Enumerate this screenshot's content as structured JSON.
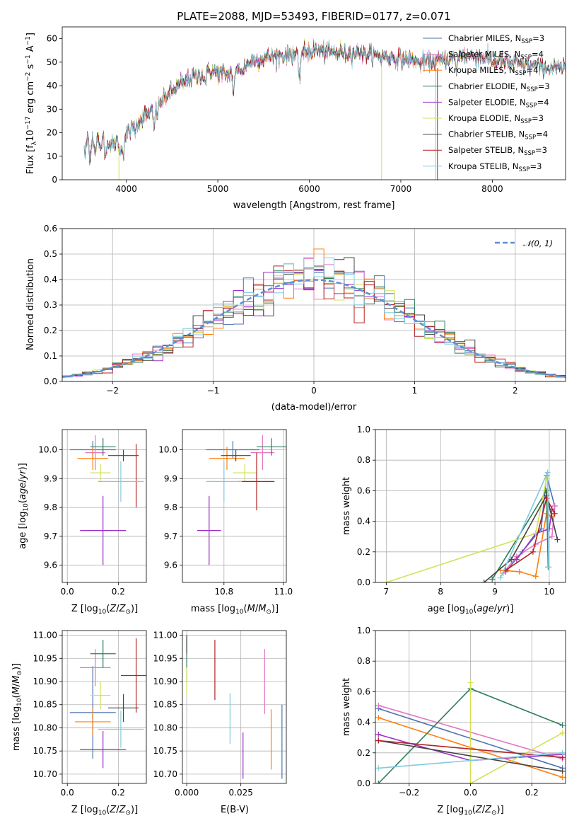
{
  "colors": {
    "chabrier_miles": "#4c72b0",
    "salpeter_miles": "#e377c2",
    "kroupa_miles": "#ff7f0e",
    "chabrier_elodie": "#2e7d5b",
    "salpeter_elodie": "#9b30c8",
    "kroupa_elodie": "#d4e157",
    "chabrier_stelib": "#444444",
    "salpeter_stelib": "#b22222",
    "kroupa_stelib": "#80cbe0",
    "gauss": "#5b8fd6"
  },
  "chart_data": [
    {
      "id": "spectrum",
      "type": "line",
      "title": "PLATE=2088, MJD=53493, FIBERID=0177, z=0.071",
      "xlabel": "wavelength [Angstrom, rest frame]",
      "ylabel": "Flux [f$_\\lambda$10$^{-17}$ erg cm$^{-2}$ s$^{-1}$ A$^{-1}$]",
      "xlim": [
        3300,
        8800
      ],
      "ylim": [
        0,
        65
      ],
      "xticks": [
        "4000",
        "5000",
        "6000",
        "7000",
        "8000"
      ],
      "yticks": [
        "0",
        "10",
        "20",
        "30",
        "40",
        "50",
        "60"
      ],
      "grid": false,
      "legend_position": "top-right",
      "legend": [
        {
          "text": "Chabrier MILES, N",
          "sub": "SSP",
          "tail": "=3"
        },
        {
          "text": "Salpeter MILES, N",
          "sub": "SSP",
          "tail": "=4"
        },
        {
          "text": "Kroupa MILES, N",
          "sub": "SSP",
          "tail": "=4"
        },
        {
          "text": "Chabrier ELODIE, N",
          "sub": "SSP",
          "tail": "=3"
        },
        {
          "text": "Salpeter ELODIE, N",
          "sub": "SSP",
          "tail": "=4"
        },
        {
          "text": "Kroupa ELODIE, N",
          "sub": "SSP",
          "tail": "=3"
        },
        {
          "text": "Chabrier STELIB, N",
          "sub": "SSP",
          "tail": "=4"
        },
        {
          "text": "Salpeter STELIB, N",
          "sub": "SSP",
          "tail": "=3"
        },
        {
          "text": "Kroupa STELIB, N",
          "sub": "SSP",
          "tail": "=3"
        }
      ],
      "continuum": {
        "x": [
          3540,
          3700,
          3850,
          3950,
          4100,
          4300,
          4500,
          4700,
          4900,
          5100,
          5300,
          5500,
          5700,
          5900,
          6100,
          6300,
          6500,
          6700,
          6900,
          7100,
          7300,
          7500,
          7700,
          7900,
          8100,
          8300,
          8500,
          8800
        ],
        "y": [
          14,
          15,
          15,
          17,
          24,
          30,
          38,
          43,
          46,
          45,
          49,
          52,
          53,
          54,
          55,
          54,
          54,
          53,
          52,
          51,
          50,
          51,
          53,
          52,
          50,
          49,
          48,
          47
        ]
      }
    },
    {
      "id": "residuals",
      "type": "line",
      "xlabel": "(data-model)/error",
      "ylabel": "Normed distribution",
      "xlim": [
        -2.5,
        2.5
      ],
      "ylim": [
        0,
        0.6
      ],
      "xticks": [
        "−2",
        "−1",
        "0",
        "1",
        "2"
      ],
      "yticks": [
        "0.0",
        "0.1",
        "0.2",
        "0.3",
        "0.4",
        "0.5",
        "0.6"
      ],
      "grid": true,
      "legend_position": "top-right",
      "legend": [
        {
          "label": "$\\mathcal{N}(0,1)$",
          "style": "dashed"
        }
      ],
      "bin_width": 0.1,
      "series": "step histograms of the nine model fits around the N(0,1) curve"
    },
    {
      "id": "age_vs_Z",
      "type": "scatter",
      "xlabel": "Z [log$_{10}$(Z/Z$_\\odot$)]",
      "ylabel": "age  [log$_{10}$(age/yr)]",
      "xlim": [
        -0.02,
        0.31
      ],
      "ylim": [
        9.54,
        10.07
      ],
      "xticks": [
        "0.0",
        "0.2"
      ],
      "yticks": [
        "9.6",
        "9.7",
        "9.8",
        "9.9",
        "10.0"
      ],
      "grid": true,
      "points": [
        {
          "x": 0.1,
          "y": 10.0,
          "xerr": 0.09,
          "yerr": 0.03
        },
        {
          "x": 0.11,
          "y": 9.99,
          "xerr": 0.04,
          "yerr": 0.06
        },
        {
          "x": 0.1,
          "y": 9.97,
          "xerr": 0.06,
          "yerr": 0.04
        },
        {
          "x": 0.14,
          "y": 10.01,
          "xerr": 0.05,
          "yerr": 0.03
        },
        {
          "x": 0.14,
          "y": 9.72,
          "xerr": 0.09,
          "yerr": 0.12
        },
        {
          "x": 0.13,
          "y": 9.92,
          "xerr": 0.04,
          "yerr": 0.03
        },
        {
          "x": 0.22,
          "y": 9.98,
          "xerr": 0.06,
          "yerr": 0.02
        },
        {
          "x": 0.27,
          "y": 9.91,
          "xerr": 0.0,
          "yerr": 0.11
        },
        {
          "x": 0.21,
          "y": 9.89,
          "xerr": 0.09,
          "yerr": 0.07
        }
      ]
    },
    {
      "id": "age_vs_mass",
      "type": "scatter",
      "xlabel": "mass [log$_{10}$(M/M$_\\odot$)]",
      "ylabel": "",
      "xlim": [
        10.66,
        11.01
      ],
      "ylim": [
        9.54,
        10.07
      ],
      "xticks": [
        "10.8",
        "11.0"
      ],
      "yticks": [
        "9.6",
        "9.7",
        "9.8",
        "9.9",
        "10.0"
      ],
      "grid": true,
      "points": [
        {
          "x": 10.83,
          "y": 10.0,
          "xerr": 0.09,
          "yerr": 0.03
        },
        {
          "x": 10.93,
          "y": 9.99,
          "xerr": 0.04,
          "yerr": 0.06
        },
        {
          "x": 10.81,
          "y": 9.97,
          "xerr": 0.06,
          "yerr": 0.04
        },
        {
          "x": 10.96,
          "y": 10.01,
          "xerr": 0.05,
          "yerr": 0.03
        },
        {
          "x": 10.75,
          "y": 9.72,
          "xerr": 0.04,
          "yerr": 0.12
        },
        {
          "x": 10.87,
          "y": 9.92,
          "xerr": 0.04,
          "yerr": 0.03
        },
        {
          "x": 10.84,
          "y": 9.98,
          "xerr": 0.05,
          "yerr": 0.02
        },
        {
          "x": 10.91,
          "y": 9.89,
          "xerr": 0.06,
          "yerr": 0.1
        },
        {
          "x": 10.8,
          "y": 9.89,
          "xerr": 0.06,
          "yerr": 0.07
        }
      ]
    },
    {
      "id": "weight_vs_age",
      "type": "line",
      "xlabel": "age  [log$_{10}$(age/yr)]",
      "ylabel": "mass weight",
      "xlim": [
        6.8,
        10.3
      ],
      "ylim": [
        0,
        1.0
      ],
      "xticks": [
        "7",
        "8",
        "9",
        "10"
      ],
      "yticks": [
        "0.0",
        "0.2",
        "0.4",
        "0.6",
        "0.8",
        "1.0"
      ],
      "grid": true,
      "series": [
        {
          "x": [
            9.2,
            9.5,
            9.85,
            9.95,
            10.1
          ],
          "y": [
            0.07,
            0.2,
            0.35,
            0.7,
            0.5
          ]
        },
        {
          "x": [
            9.15,
            9.4,
            9.75,
            10.05,
            10.1
          ],
          "y": [
            0.06,
            0.17,
            0.25,
            0.3,
            0.5
          ]
        },
        {
          "x": [
            9.1,
            9.45,
            9.75,
            9.95,
            10.05
          ],
          "y": [
            0.08,
            0.07,
            0.04,
            0.45,
            0.43
          ]
        },
        {
          "x": [
            8.95,
            9.95,
            9.98
          ],
          "y": [
            0.02,
            0.6,
            0.1
          ]
        },
        {
          "x": [
            9.4,
            9.75,
            10.0,
            10.05
          ],
          "y": [
            0.15,
            0.32,
            0.35,
            0.48
          ]
        },
        {
          "x": [
            7.0,
            9.75,
            9.95
          ],
          "y": [
            0.0,
            0.32,
            0.68
          ]
        },
        {
          "x": [
            8.8,
            9.3,
            9.95,
            10.15
          ],
          "y": [
            0.0,
            0.15,
            0.57,
            0.28
          ]
        },
        {
          "x": [
            9.2,
            9.7,
            9.95,
            10.1
          ],
          "y": [
            0.08,
            0.2,
            0.55,
            0.45
          ]
        },
        {
          "x": [
            9.1,
            9.97,
            9.99
          ],
          "y": [
            0.03,
            0.72,
            0.1
          ]
        }
      ]
    },
    {
      "id": "mass_vs_Z",
      "type": "scatter",
      "xlabel": "Z [log$_{10}$(Z/Z$_\\odot$)]",
      "ylabel": "mass [log$_{10}$(M/M$_\\odot$)]",
      "xlim": [
        -0.02,
        0.31
      ],
      "ylim": [
        10.68,
        11.01
      ],
      "xticks": [
        "0.0",
        "0.2"
      ],
      "yticks": [
        "10.70",
        "10.75",
        "10.80",
        "10.85",
        "10.90",
        "10.95",
        "11.00"
      ],
      "grid": true,
      "points": [
        {
          "x": 0.1,
          "y": 10.833,
          "xerr": 0.09,
          "yerr": 0.1
        },
        {
          "x": 0.11,
          "y": 10.93,
          "xerr": 0.06,
          "yerr": 0.04
        },
        {
          "x": 0.1,
          "y": 10.813,
          "xerr": 0.07,
          "yerr": 0.03
        },
        {
          "x": 0.14,
          "y": 10.96,
          "xerr": 0.05,
          "yerr": 0.03
        },
        {
          "x": 0.14,
          "y": 10.753,
          "xerr": 0.09,
          "yerr": 0.04
        },
        {
          "x": 0.13,
          "y": 10.87,
          "xerr": 0.04,
          "yerr": 0.03
        },
        {
          "x": 0.22,
          "y": 10.843,
          "xerr": 0.06,
          "yerr": 0.03
        },
        {
          "x": 0.27,
          "y": 10.913,
          "xerr": 0.06,
          "yerr": 0.08
        },
        {
          "x": 0.21,
          "y": 10.797,
          "xerr": 0.09,
          "yerr": 0.04
        }
      ]
    },
    {
      "id": "mass_vs_EBV",
      "type": "scatter",
      "xlabel": "E(B-V)",
      "ylabel": "",
      "xlim": [
        -0.002,
        0.046
      ],
      "ylim": [
        10.68,
        11.01
      ],
      "xticks": [
        "0.000",
        "0.025"
      ],
      "yticks": [
        "10.70",
        "10.75",
        "10.80",
        "10.85",
        "10.90",
        "10.95",
        "11.00"
      ],
      "grid": true,
      "points": [
        {
          "x": 0.044,
          "y": 10.77,
          "yerr": 0.08
        },
        {
          "x": 0.036,
          "y": 10.9,
          "yerr": 0.07
        },
        {
          "x": 0.039,
          "y": 10.775,
          "yerr": 0.065
        },
        {
          "x": 0.0,
          "y": 10.95,
          "yerr": 0.05
        },
        {
          "x": 0.026,
          "y": 10.74,
          "yerr": 0.05
        },
        {
          "x": 0.0,
          "y": 10.9,
          "yerr": 0.03
        },
        {
          "x": 0.0,
          "y": 10.98,
          "yerr": 0.02
        },
        {
          "x": 0.013,
          "y": 10.925,
          "yerr": 0.065
        },
        {
          "x": 0.02,
          "y": 10.82,
          "yerr": 0.055
        }
      ]
    },
    {
      "id": "weight_vs_Z",
      "type": "line",
      "xlabel": "Z [log$_{10}$(Z/Z$_\\odot$)]",
      "ylabel": "mass weight",
      "xlim": [
        -0.31,
        0.31
      ],
      "ylim": [
        0,
        1.0
      ],
      "xticks": [
        "−0.2",
        "0.0",
        "0.2"
      ],
      "yticks": [
        "0.0",
        "0.2",
        "0.4",
        "0.6",
        "0.8",
        "1.0"
      ],
      "grid": true,
      "series": [
        {
          "x": [
            -0.3,
            0.3
          ],
          "y": [
            0.49,
            0.1
          ]
        },
        {
          "x": [
            -0.3,
            0.3
          ],
          "y": [
            0.51,
            0.16
          ]
        },
        {
          "x": [
            -0.3,
            0.3
          ],
          "y": [
            0.43,
            0.04
          ]
        },
        {
          "x": [
            -0.3,
            0.0,
            0.3
          ],
          "y": [
            0.0,
            0.62,
            0.38
          ]
        },
        {
          "x": [
            -0.3,
            0.0,
            0.3
          ],
          "y": [
            0.32,
            0.15,
            0.19
          ]
        },
        {
          "x": [
            0.0,
            0.0,
            0.3
          ],
          "y": [
            0.66,
            0.0,
            0.33
          ]
        },
        {
          "x": [
            -0.3,
            0.3
          ],
          "y": [
            0.28,
            0.08
          ]
        },
        {
          "x": [
            -0.3,
            0.3
          ],
          "y": [
            0.28,
            0.17
          ]
        },
        {
          "x": [
            -0.3,
            0.3
          ],
          "y": [
            0.1,
            0.2
          ]
        }
      ]
    }
  ]
}
